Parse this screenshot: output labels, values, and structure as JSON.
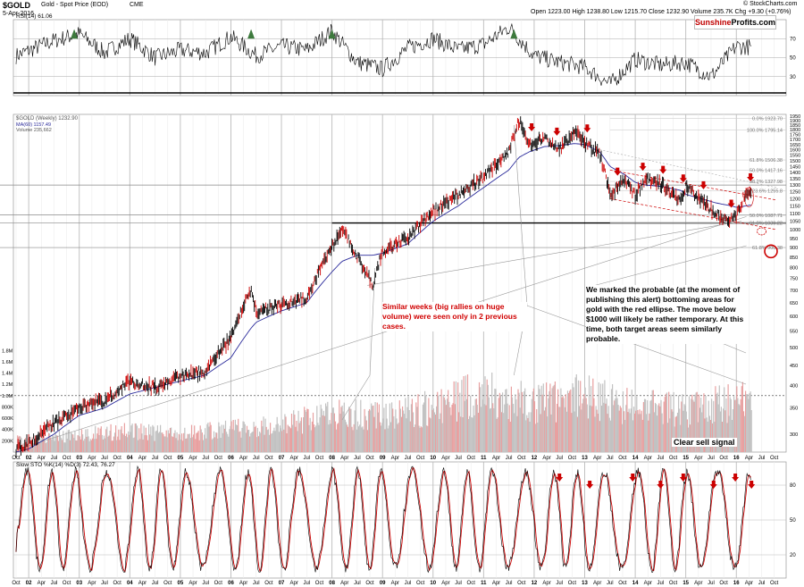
{
  "header": {
    "symbol": "$GOLD",
    "name": "Gold - Spot Price (EOD)",
    "exchange": "CME",
    "date": "5-Apr-2016",
    "ohlc": "Open 1223.00  High 1238.80  Low 1215.70  Close 1232.90  Volume 235.7K  Chg +9.30 (+0.76%)",
    "copyright": "© StockCharts.com",
    "logo_part1": "Sunshine",
    "logo_part2": "Profits.com"
  },
  "annotations": {
    "similar_weeks": "Similar weeks (big rallies on huge volume) were seen only in 2 previous cases.",
    "probable_bottom": "We marked the probable (at the moment of publishing this alert) bottoming areas for gold with the red ellipse. The move below $1000 will likely be rather temporary. At this time, both target areas seem similarly probable.",
    "sell_signal": "Clear sell signal"
  },
  "colors": {
    "price_bar": "#000000",
    "price_outline": "#cc0000",
    "ma": "#2b2b9b",
    "volume": "#c2c2c2",
    "volume_up": "#e8a0a0",
    "arrow": "#cc0000",
    "stoch_k": "#000000",
    "stoch_d": "#cc0000",
    "rsi": "#000000",
    "rsi_fill": "#3d7a3d"
  },
  "chart_data": [
    {
      "type": "line",
      "panel": "rsi",
      "title": "RSI(14) 61.06",
      "y_ticks": [
        70,
        50,
        30
      ],
      "ylim": [
        10,
        90
      ],
      "x": [
        2001.75,
        2002.5,
        2003.0,
        2003.5,
        2004.0,
        2004.5,
        2005.0,
        2005.5,
        2006.0,
        2006.5,
        2007.0,
        2007.5,
        2008.0,
        2008.5,
        2009.0,
        2009.5,
        2010.0,
        2010.5,
        2011.0,
        2011.5,
        2012.0,
        2012.5,
        2013.0,
        2013.5,
        2014.0,
        2014.5,
        2015.0,
        2015.5,
        2016.0,
        2016.3
      ],
      "values": [
        52,
        68,
        75,
        55,
        70,
        50,
        58,
        55,
        72,
        52,
        62,
        58,
        78,
        45,
        38,
        60,
        70,
        58,
        64,
        82,
        52,
        45,
        40,
        22,
        48,
        42,
        45,
        30,
        62,
        61
      ]
    },
    {
      "type": "line",
      "panel": "price",
      "title": "$GOLD (Weekly) 1232.90",
      "legend": [
        "$GOLD (Weekly) 1232.90",
        "MA(60) 1157.49",
        "Volume 235,662"
      ],
      "scale": "log",
      "ylim": [
        270,
        1950
      ],
      "y_ticks": [
        1950,
        1900,
        1850,
        1800,
        1750,
        1700,
        1650,
        1600,
        1550,
        1500,
        1450,
        1400,
        1350,
        1300,
        1250,
        1200,
        1150,
        1100,
        1050,
        1000,
        950,
        900,
        850,
        800,
        750,
        700,
        650,
        600,
        550,
        500,
        450,
        400,
        350,
        300
      ],
      "fib_levels": [
        {
          "label": "0.0% 1923.70",
          "value": 1923.7
        },
        {
          "label": "100.0% 1795.14",
          "value": 1795.14
        },
        {
          "label": "61.8% 1506.38",
          "value": 1506.38
        },
        {
          "label": "50.0% 1417.16",
          "value": 1417.16
        },
        {
          "label": "38.2% 1327.98",
          "value": 1327.98
        },
        {
          "label": "23.6% 1255.8",
          "value": 1255.8
        },
        {
          "label": "50.0% 1087.71",
          "value": 1087.71
        },
        {
          "label": "61.8% 1039.22",
          "value": 1039.22
        },
        {
          "label": "61.8% 900.38",
          "value": 900.38
        }
      ],
      "x": [
        2001.75,
        2002.0,
        2002.5,
        2003.0,
        2003.5,
        2004.0,
        2004.5,
        2005.0,
        2005.5,
        2006.0,
        2006.4,
        2006.5,
        2007.0,
        2007.5,
        2008.0,
        2008.2,
        2008.5,
        2008.8,
        2009.0,
        2009.5,
        2010.0,
        2010.5,
        2011.0,
        2011.5,
        2011.7,
        2011.9,
        2012.2,
        2012.5,
        2012.8,
        2013.0,
        2013.3,
        2013.5,
        2013.8,
        2014.0,
        2014.2,
        2014.5,
        2014.9,
        2015.0,
        2015.3,
        2015.6,
        2015.9,
        2016.0,
        2016.2,
        2016.3
      ],
      "values": [
        275,
        285,
        320,
        350,
        365,
        410,
        395,
        425,
        435,
        530,
        700,
        620,
        640,
        670,
        900,
        1000,
        850,
        720,
        880,
        950,
        1110,
        1230,
        1360,
        1580,
        1900,
        1650,
        1720,
        1600,
        1780,
        1670,
        1560,
        1230,
        1330,
        1220,
        1350,
        1310,
        1180,
        1280,
        1200,
        1090,
        1060,
        1080,
        1260,
        1233
      ],
      "ma_values": [
        270,
        275,
        300,
        335,
        350,
        380,
        395,
        410,
        425,
        470,
        560,
        580,
        620,
        650,
        780,
        830,
        860,
        860,
        870,
        920,
        1050,
        1150,
        1280,
        1420,
        1530,
        1580,
        1630,
        1640,
        1660,
        1650,
        1580,
        1450,
        1380,
        1320,
        1300,
        1290,
        1260,
        1230,
        1200,
        1170,
        1150,
        1140,
        1150,
        1157
      ]
    },
    {
      "type": "bar",
      "panel": "volume",
      "y_ticks": [
        "1.8M",
        "1.6M",
        "1.4M",
        "1.2M",
        "1.0M",
        "800K",
        "600K",
        "400K",
        "200K"
      ],
      "ylim": [
        0,
        1900000
      ],
      "threshold": 1000000,
      "x": [
        2002,
        2003,
        2004,
        2005,
        2006,
        2007,
        2008,
        2009,
        2010,
        2011,
        2012,
        2013,
        2014,
        2015,
        2016
      ],
      "values": [
        200000,
        300000,
        350000,
        300000,
        400000,
        450000,
        650000,
        600000,
        750000,
        1000000,
        800000,
        950000,
        750000,
        700000,
        850000
      ]
    },
    {
      "type": "line",
      "panel": "stochastic",
      "title": "Slow STO %K(14) %D(3) 72.43, 76.27",
      "y_ticks": [
        80,
        50,
        20
      ],
      "ylim": [
        0,
        100
      ],
      "period_years": 0.55,
      "x_end": 2016.3,
      "last_k": 72.43,
      "last_d": 76.27
    }
  ],
  "x_axis": {
    "labels": [
      "Oct",
      "02",
      "Apr",
      "Jul",
      "Oct",
      "03",
      "Apr",
      "Jul",
      "Oct",
      "04",
      "Apr",
      "Jul",
      "Oct",
      "05",
      "Apr",
      "Jul",
      "Oct",
      "06",
      "Apr",
      "Jul",
      "Oct",
      "07",
      "Apr",
      "Jul",
      "Oct",
      "08",
      "Apr",
      "Jul",
      "Oct",
      "09",
      "Apr",
      "Jul",
      "Oct",
      "10",
      "Apr",
      "Jul",
      "Oct",
      "11",
      "Apr",
      "Jul",
      "Oct",
      "12",
      "Apr",
      "Jul",
      "Oct",
      "13",
      "Apr",
      "Jul",
      "Oct",
      "14",
      "Apr",
      "Jul",
      "Oct",
      "15",
      "Apr",
      "Jul",
      "Oct",
      "16",
      "Apr",
      "Jul",
      "Oct"
    ]
  },
  "price_arrows_x": [
    2011.95,
    2012.45,
    2013.05,
    2013.65,
    2014.15,
    2014.55,
    2014.95,
    2015.35,
    2015.9,
    2016.28
  ],
  "stoch_arrows_x": [
    2012.5,
    2013.1,
    2013.95,
    2014.5,
    2014.95,
    2015.55,
    2015.98,
    2016.3
  ]
}
